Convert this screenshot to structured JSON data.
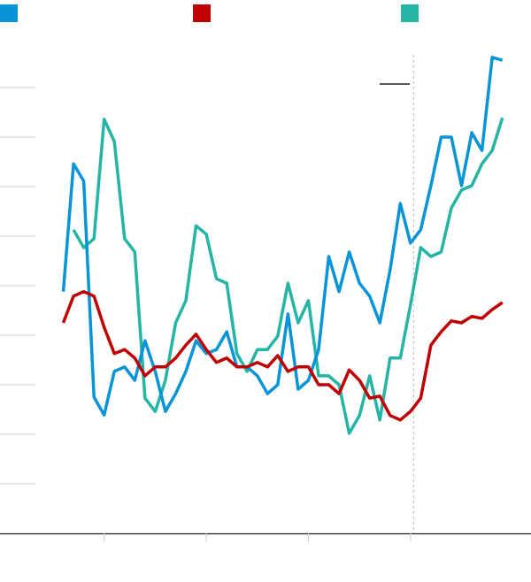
{
  "chart_data": {
    "type": "line",
    "x": [
      0.6,
      0.7,
      0.8,
      0.9,
      1.0,
      1.1,
      1.2,
      1.3,
      1.4,
      1.5,
      1.6,
      1.7,
      1.8,
      1.9,
      2.0,
      2.1,
      2.2,
      2.3,
      2.4,
      2.5,
      2.6,
      2.7,
      2.8,
      2.9,
      3.0,
      3.1,
      3.2,
      3.3,
      3.4,
      3.5,
      3.6,
      3.7,
      3.8,
      3.9,
      4.0,
      4.1,
      4.2,
      4.3,
      4.4,
      4.5,
      4.6,
      4.7,
      4.8,
      4.9
    ],
    "series": [
      {
        "color": "#0a94d8",
        "values": [
          4.88,
          7.46,
          7.11,
          2.75,
          2.39,
          3.27,
          3.36,
          3.09,
          3.89,
          3.27,
          2.46,
          2.82,
          3.27,
          3.89,
          3.63,
          3.71,
          4.07,
          3.36,
          3.36,
          3.18,
          2.82,
          3.0,
          4.43,
          2.91,
          3.09,
          3.71,
          5.59,
          4.88,
          5.68,
          5.05,
          4.79,
          4.25,
          5.32,
          6.66,
          5.86,
          6.13,
          7.02,
          8.0,
          8.0,
          7.02,
          8.09,
          7.73,
          9.61,
          9.55
        ]
      },
      {
        "color": "#c00000",
        "values": [
          4.25,
          4.79,
          4.88,
          4.79,
          4.16,
          3.63,
          3.71,
          3.54,
          3.18,
          3.36,
          3.36,
          3.54,
          3.8,
          4.02,
          3.71,
          3.45,
          3.54,
          3.36,
          3.36,
          3.45,
          3.36,
          3.59,
          3.27,
          3.36,
          3.36,
          3.0,
          3.0,
          2.82,
          3.3,
          3.09,
          2.73,
          2.77,
          2.38,
          2.29,
          2.46,
          2.73,
          3.8,
          4.07,
          4.29,
          4.25,
          4.38,
          4.34,
          4.52,
          4.66
        ]
      },
      {
        "color": "#26b5a5",
        "values": [
          null,
          6.13,
          5.77,
          5.95,
          8.36,
          7.91,
          5.95,
          5.68,
          2.73,
          2.46,
          3.09,
          4.25,
          4.7,
          6.21,
          6.04,
          5.14,
          5.05,
          3.63,
          3.27,
          3.71,
          3.71,
          3.98,
          5.05,
          4.25,
          4.7,
          3.18,
          3.18,
          3.0,
          2.02,
          2.38,
          3.18,
          2.29,
          3.54,
          3.54,
          4.61,
          5.77,
          5.59,
          5.68,
          6.57,
          6.93,
          7.02,
          7.46,
          7.73,
          8.39
        ]
      }
    ],
    "xlim": [
      -0.02,
      5.18
    ],
    "xticks": [
      1,
      2,
      3,
      4
    ],
    "ylim": [
      0,
      10
    ],
    "yticks": [
      1,
      2,
      3,
      4,
      5,
      6,
      7,
      8,
      9
    ],
    "grid": true,
    "vline": 4.03
  }
}
